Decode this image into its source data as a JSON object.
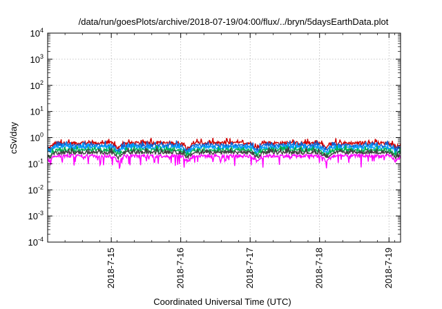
{
  "chart_data": {
    "type": "line",
    "title": "/data/run/goesPlots/archive/2018-07-19/04:00/flux/../bryn/5daysEarthData.plot",
    "xlabel": "Coordinated Universal Time (UTC)",
    "ylabel": "cSv/day",
    "yscale": "log",
    "ylim": [
      0.0001,
      10000
    ],
    "y_tick_base": "10",
    "y_tick_exponents": [
      "-4",
      "-3",
      "-2",
      "-1",
      "0",
      "1",
      "2",
      "3",
      "4"
    ],
    "xlim_days": [
      "2018-07-14T02:00",
      "2018-07-19T04:00"
    ],
    "x_ticks": [
      "2018-7-15",
      "2018-7-16",
      "2018-7-17",
      "2018-7-18",
      "2018-7-19"
    ],
    "grid": true,
    "series": [
      {
        "color": "#d00000",
        "level": 0.62
      },
      {
        "color": "#1060d0",
        "level": 0.5
      },
      {
        "color": "#00a0ff",
        "level": 0.42
      },
      {
        "color": "#00b050",
        "level": 0.33
      },
      {
        "color": "#404040",
        "level": 0.27
      },
      {
        "color": "#ff00ff",
        "level": 0.2
      }
    ]
  }
}
